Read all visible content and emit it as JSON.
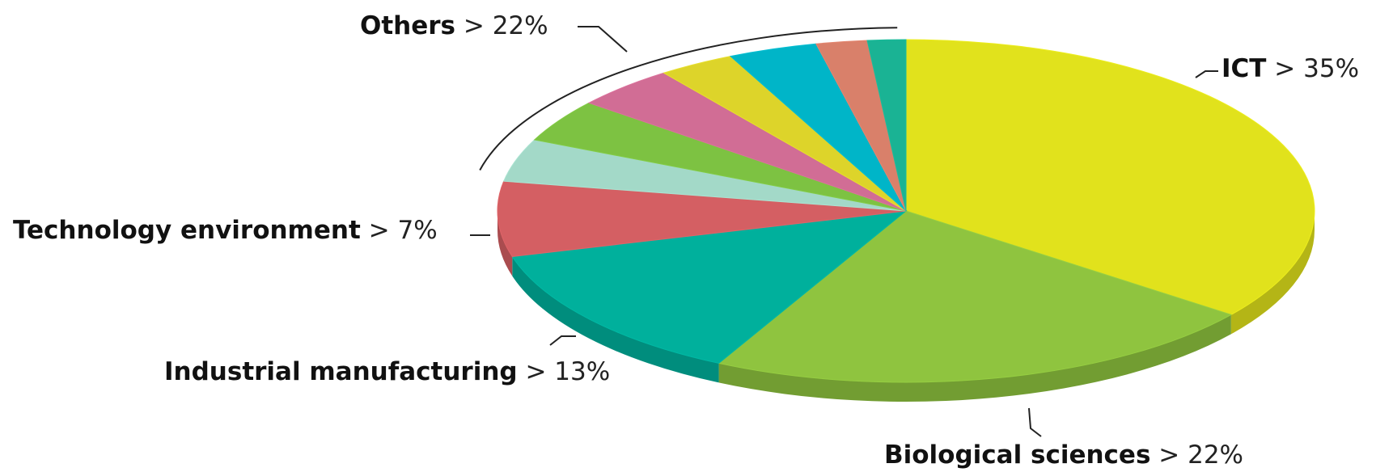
{
  "chart_data": {
    "type": "pie",
    "categories": [
      "ICT",
      "Biological sciences",
      "Industrial manufacturing",
      "Technology environment",
      "Others"
    ],
    "values": [
      35,
      22,
      13,
      7,
      22
    ],
    "value_labels": [
      "> 35%",
      "> 22%",
      "> 13%",
      "> 7%",
      "> 22%"
    ],
    "colors": [
      "#e1e21c",
      "#8fc43f",
      "#00b09c",
      "#d45f63",
      null
    ],
    "others_segments": {
      "values": [
        4,
        4,
        4,
        3,
        3.5,
        2,
        1.5
      ],
      "colors": [
        "#a3d9c8",
        "#7dc242",
        "#d16d95",
        "#ddd42a",
        "#00b5c8",
        "#d9806a",
        "#1ab394"
      ]
    }
  }
}
